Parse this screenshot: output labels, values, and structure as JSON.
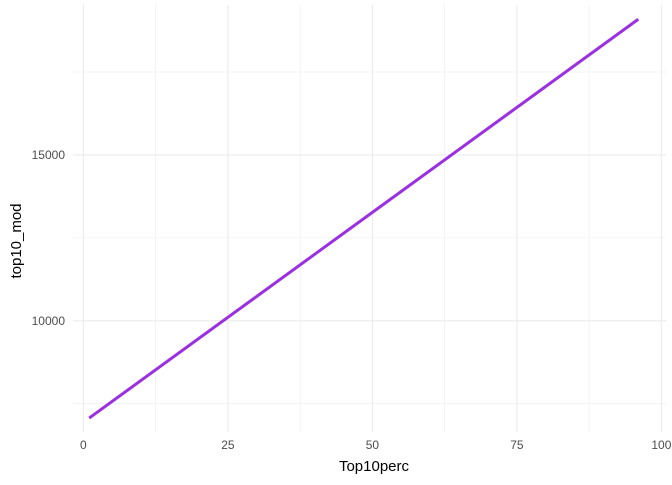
{
  "chart_data": {
    "type": "line",
    "xlabel": "Top10perc",
    "ylabel": "top10_mod",
    "xlim": [
      -1.8,
      100.8
    ],
    "ylim": [
      6650,
      19520
    ],
    "x_ticks": [
      0,
      25,
      50,
      75,
      100
    ],
    "x_tick_labels": [
      "0",
      "25",
      "50",
      "75",
      "100"
    ],
    "y_ticks": [
      10000,
      15000
    ],
    "y_tick_labels": [
      "10000",
      "15000"
    ],
    "x_minor_ticks": [
      12.5,
      37.5,
      62.5,
      87.5
    ],
    "y_minor_ticks": [
      7500,
      12500,
      17500
    ],
    "grid": true,
    "legend": "none",
    "series": [
      {
        "color": "#9B30E0",
        "x": [
          1,
          96
        ],
        "y": [
          7070,
          19090
        ]
      }
    ]
  }
}
